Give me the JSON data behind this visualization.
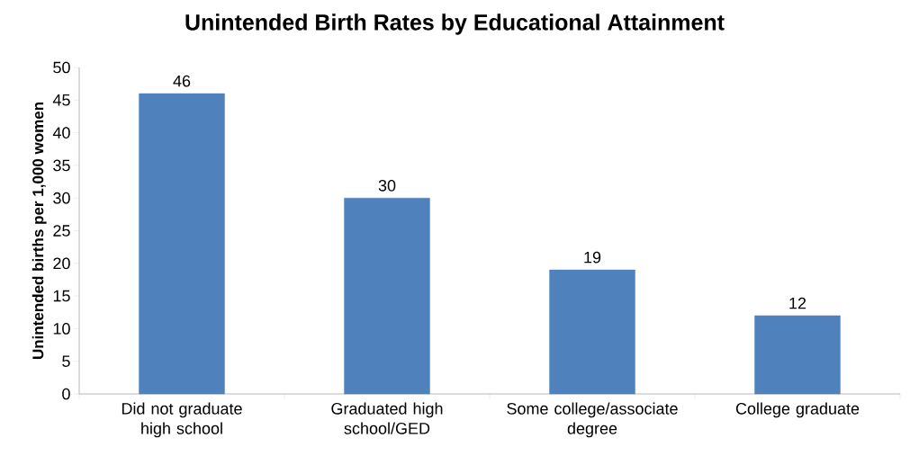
{
  "chart_data": {
    "type": "bar",
    "title": "Unintended Birth Rates by Educational Attainment",
    "ylabel": "Unintended births per 1,000 women",
    "categories": [
      "Did not graduate high school",
      "Graduated high school/GED",
      "Some college/associate degree",
      "College graduate"
    ],
    "values": [
      46,
      30,
      19,
      12
    ],
    "color": "#4f81bd",
    "ylim": [
      0,
      50
    ],
    "yticks": [
      0,
      5,
      10,
      15,
      20,
      25,
      30,
      35,
      40,
      45,
      50
    ],
    "data_labels": true
  }
}
